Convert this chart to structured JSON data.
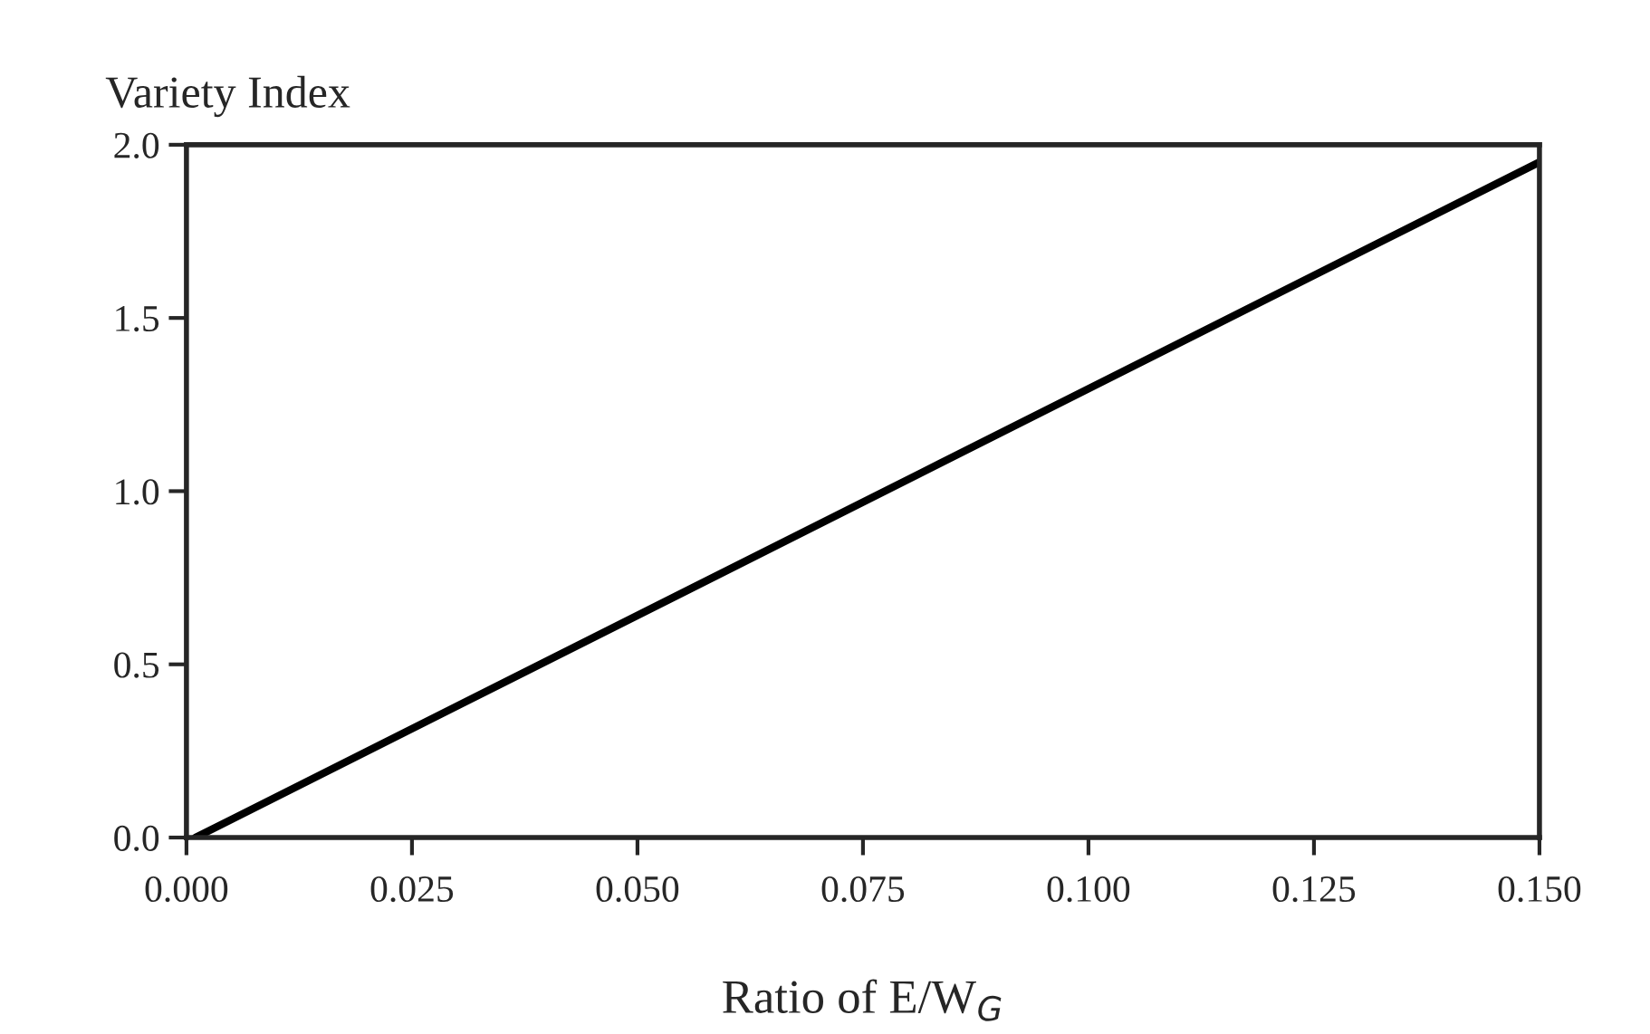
{
  "chart_data": {
    "type": "line",
    "xlabel": "Ratio of E/W$_{G}$",
    "ylabel": "Variety Index",
    "x": [
      0.001,
      0.15
    ],
    "series": [
      {
        "color": "#000000",
        "values": [
          0.0,
          1.95
        ]
      }
    ],
    "xlim": [
      0.0,
      0.15
    ],
    "ylim": [
      0.0,
      2.0
    ],
    "xticks": [
      {
        "value": 0.0,
        "label": "0.000"
      },
      {
        "value": 0.025,
        "label": "0.025"
      },
      {
        "value": 0.05,
        "label": "0.050"
      },
      {
        "value": 0.075,
        "label": "0.075"
      },
      {
        "value": 0.1,
        "label": "0.100"
      },
      {
        "value": 0.125,
        "label": "0.125"
      },
      {
        "value": 0.15,
        "label": "0.150"
      }
    ],
    "yticks": [
      {
        "value": 0.0,
        "label": "0.0"
      },
      {
        "value": 0.5,
        "label": "0.5"
      },
      {
        "value": 1.0,
        "label": "1.0"
      },
      {
        "value": 1.5,
        "label": "1.5"
      },
      {
        "value": 2.0,
        "label": "2.0"
      }
    ],
    "grid": false,
    "legend": false
  }
}
